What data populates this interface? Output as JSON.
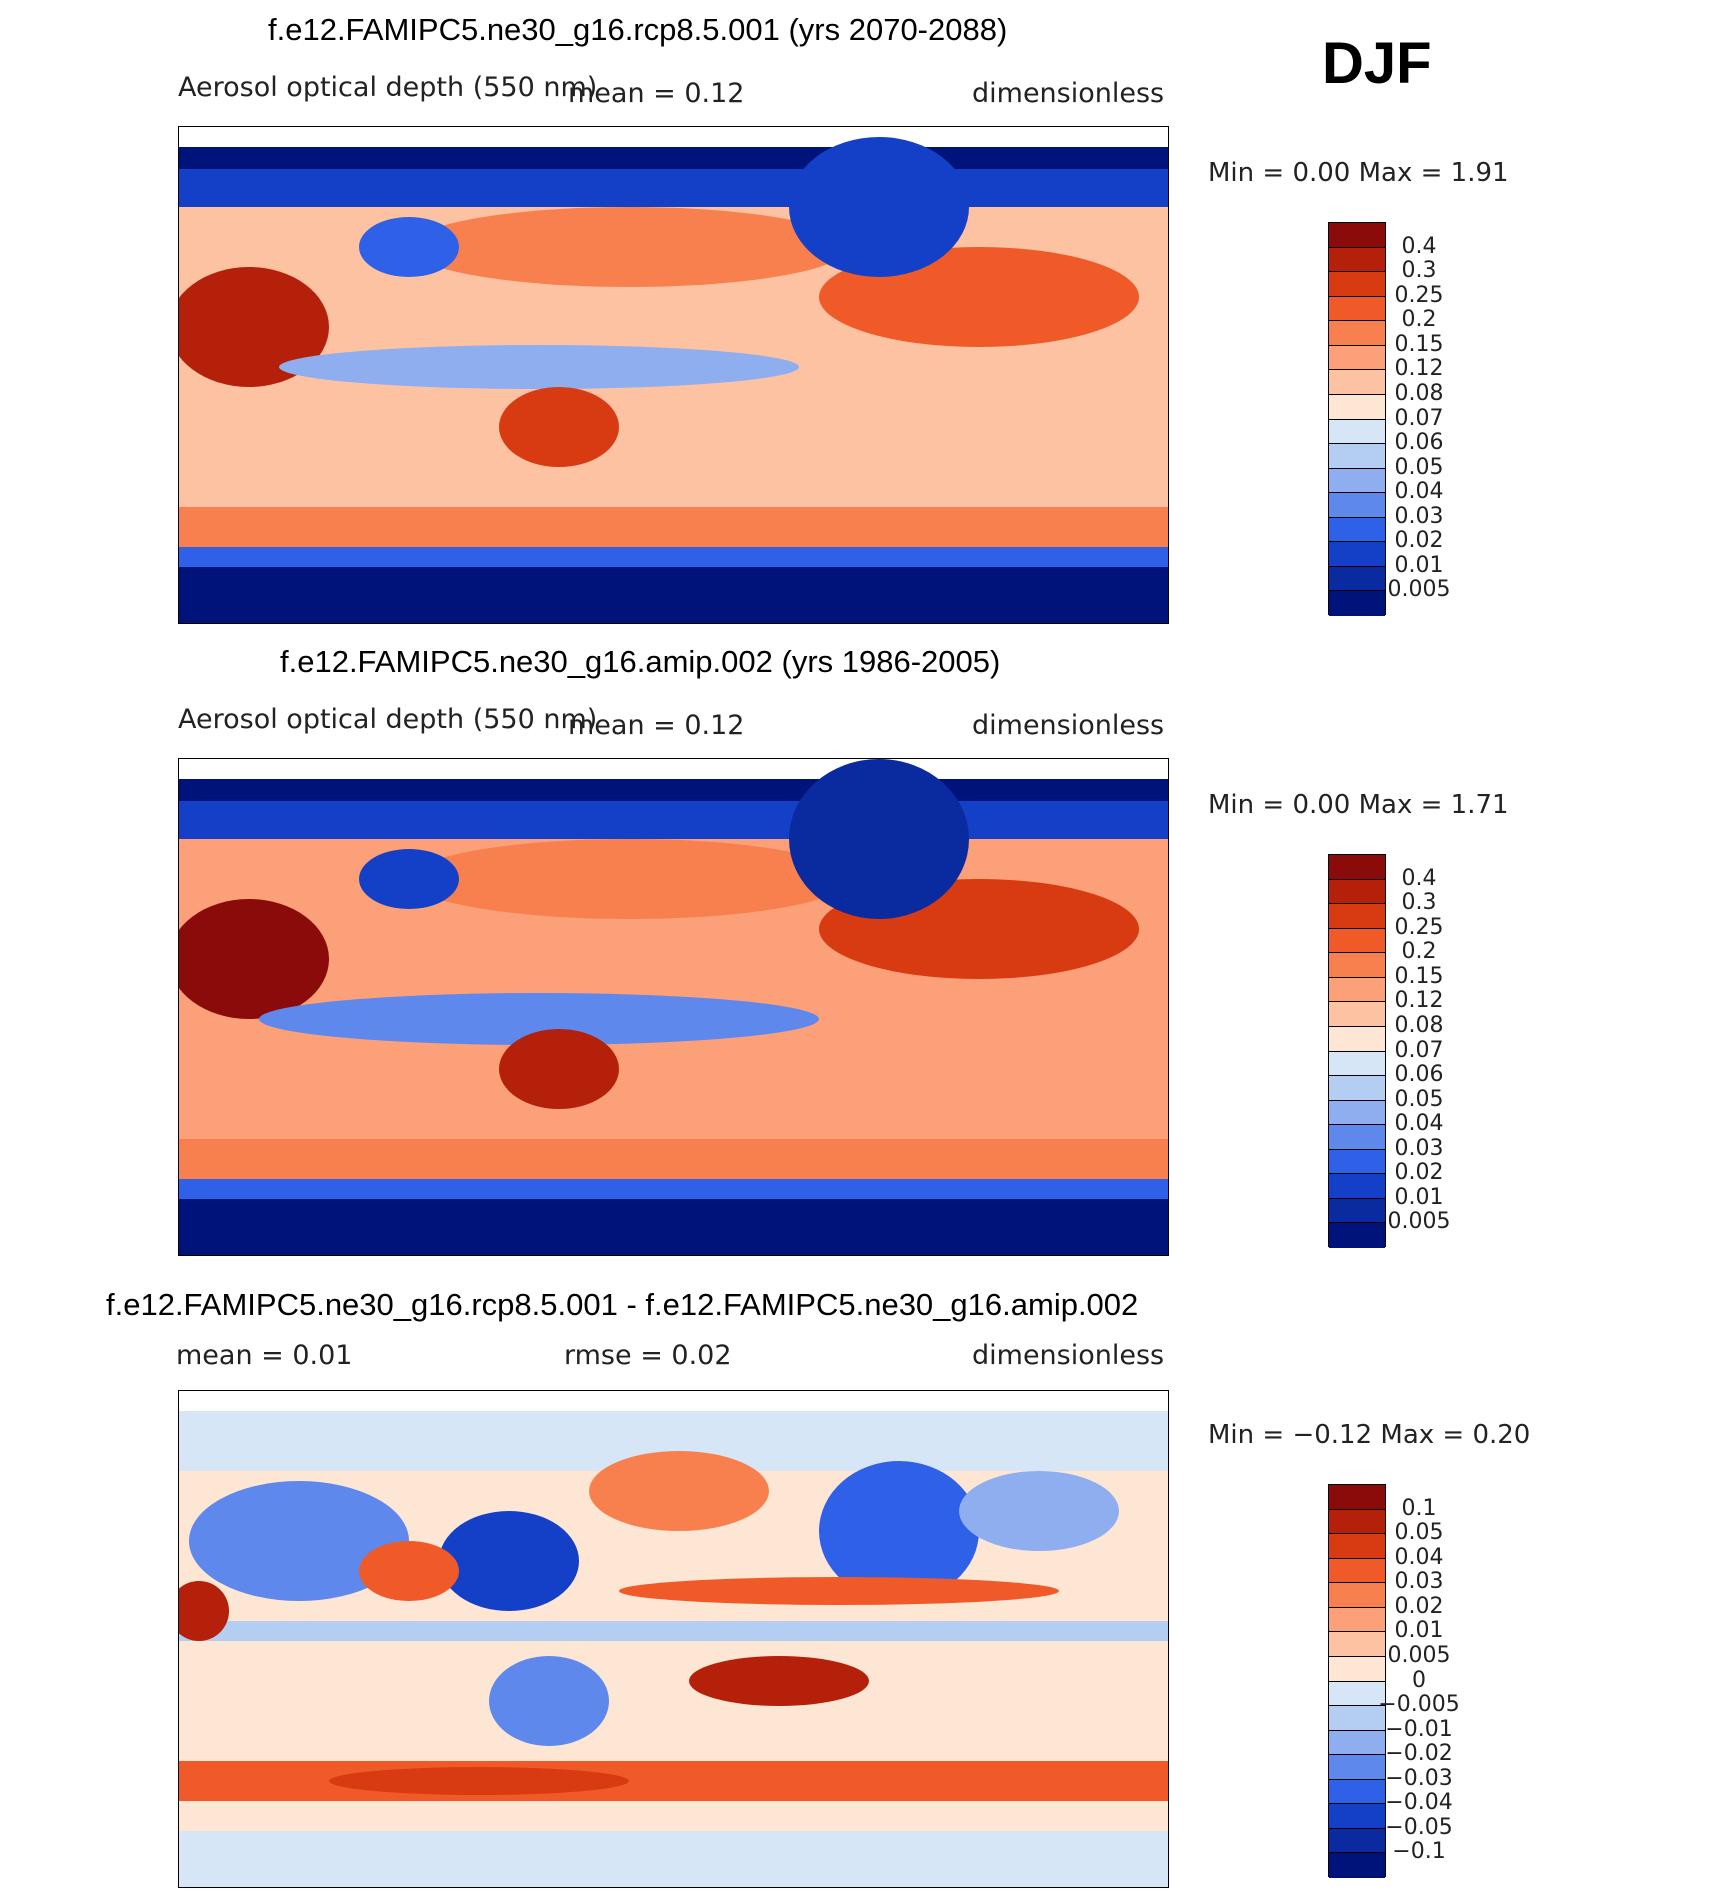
{
  "season": "DJF",
  "panels": [
    {
      "title": "f.e12.FAMIPC5.ne30_g16.rcp8.5.001 (yrs 2070-2088)",
      "variable": "Aerosol optical depth (550 nm)",
      "stat1": "mean =     0.12",
      "units": "dimensionless",
      "minmax": "Min  =     0.00  Max  =     1.91"
    },
    {
      "title": "f.e12.FAMIPC5.ne30_g16.amip.002 (yrs 1986-2005)",
      "variable": "Aerosol optical depth (550 nm)",
      "stat1": "mean =     0.12",
      "units": "dimensionless",
      "minmax": "Min  =     0.00  Max  =     1.71"
    },
    {
      "title": "f.e12.FAMIPC5.ne30_g16.rcp8.5.001 - f.e12.FAMIPC5.ne30_g16.amip.002",
      "stat_mean": "mean =     0.01",
      "stat_rmse": "rmse =     0.02",
      "units": "dimensionless",
      "minmax": "Min  =   −0.12  Max  =     0.20"
    }
  ],
  "colorbar_abs": {
    "labels": [
      "0.4",
      "0.3",
      "0.25",
      "0.2",
      "0.15",
      "0.12",
      "0.08",
      "0.07",
      "0.06",
      "0.05",
      "0.04",
      "0.03",
      "0.02",
      "0.01",
      "0.005"
    ],
    "colors": [
      "#8b0a0a",
      "#b5200a",
      "#d83a12",
      "#f05a28",
      "#f8804e",
      "#fba078",
      "#fcc2a2",
      "#fde6d4",
      "#d6e6f6",
      "#b4cdf3",
      "#8eaef0",
      "#5f88ec",
      "#2f60e8",
      "#1440c8",
      "#0a2aa0",
      "#00137a"
    ]
  },
  "colorbar_diff": {
    "labels": [
      "0.1",
      "0.05",
      "0.04",
      "0.03",
      "0.02",
      "0.01",
      "0.005",
      "0",
      "−0.005",
      "−0.01",
      "−0.02",
      "−0.03",
      "−0.04",
      "−0.05",
      "−0.1"
    ],
    "colors": [
      "#8b0a0a",
      "#b5200a",
      "#d83a12",
      "#f05a28",
      "#f8804e",
      "#fba078",
      "#fcc2a2",
      "#fde6d4",
      "#d6e6f6",
      "#b4cdf3",
      "#8eaef0",
      "#5f88ec",
      "#2f60e8",
      "#1440c8",
      "#0a2aa0",
      "#00137a"
    ]
  }
}
